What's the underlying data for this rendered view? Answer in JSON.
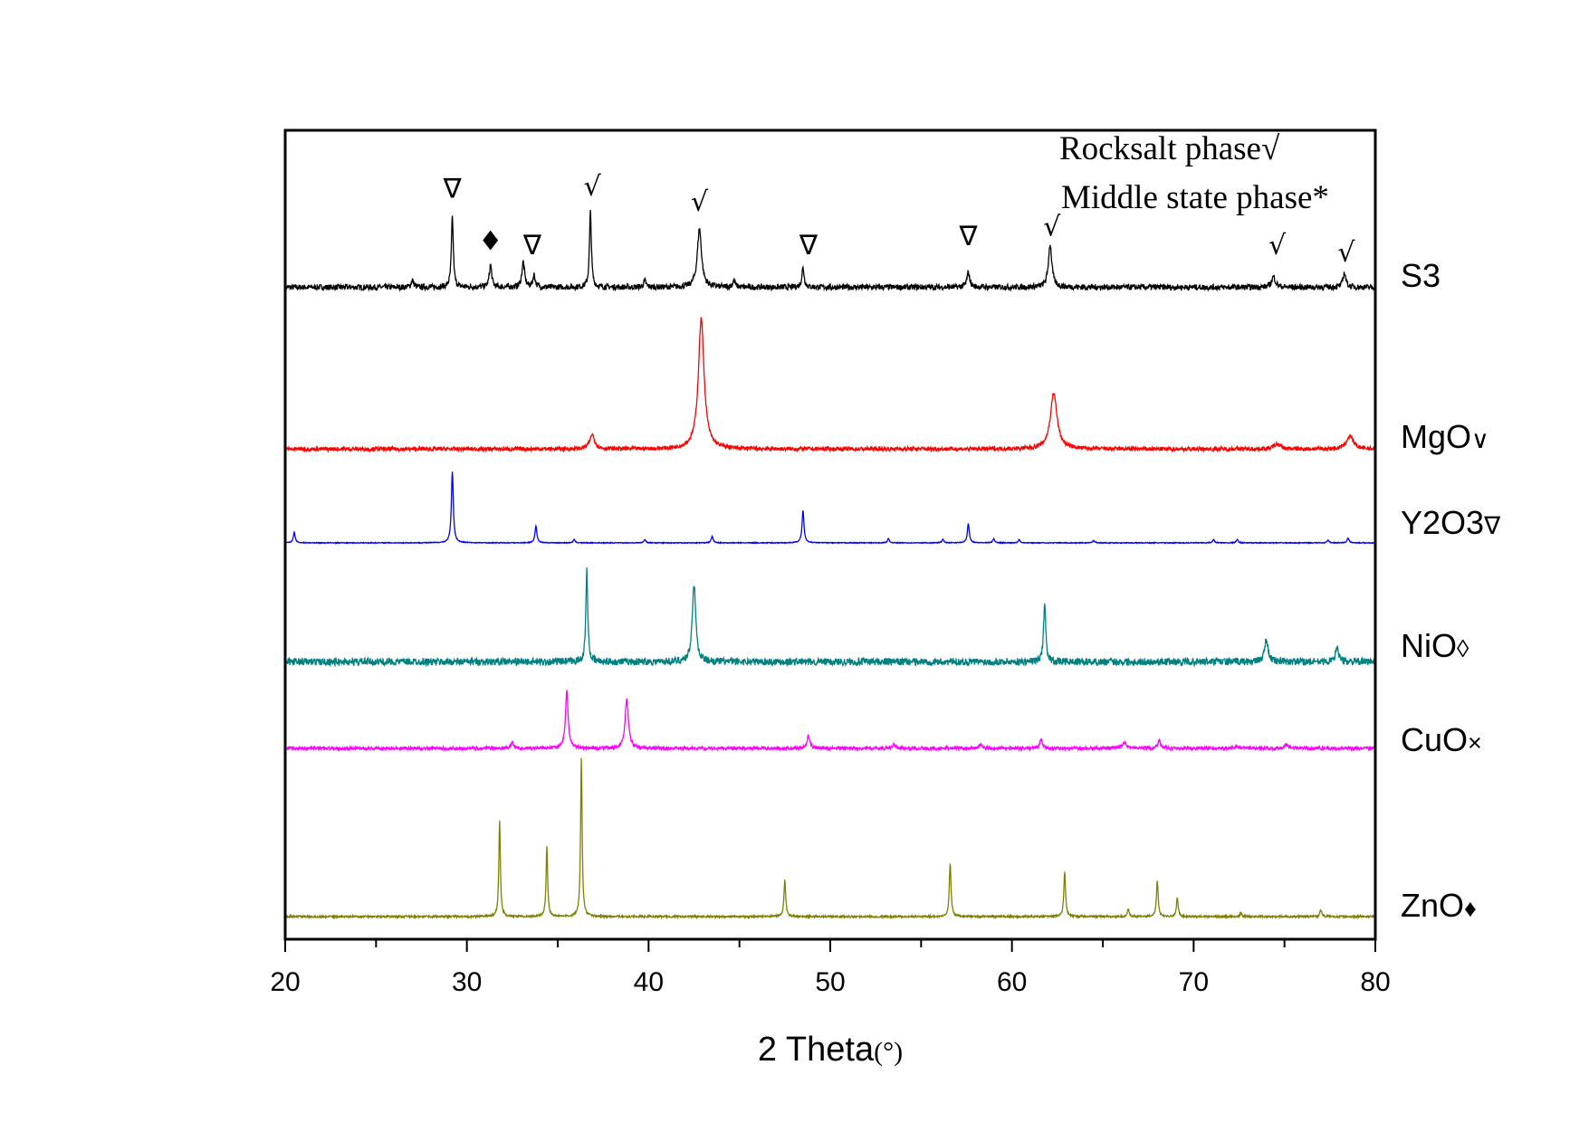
{
  "chart_data": {
    "type": "line",
    "xlabel": "2 Theta",
    "xlabel_unit": "(°)",
    "ylabel": "",
    "xlim": [
      20,
      80
    ],
    "ylim": [
      0,
      100
    ],
    "xticks": [
      20,
      30,
      40,
      50,
      60,
      70,
      80
    ],
    "minor_xticks": [
      25,
      35,
      45,
      55,
      65,
      75
    ],
    "grid": false,
    "legend": {
      "placement": "top-right",
      "entries": [
        {
          "text": "Rocksalt phase√"
        },
        {
          "text": "Middle state phase*"
        }
      ]
    },
    "series": [
      {
        "name": "S3",
        "label_main": "S3",
        "label_mark": "",
        "color": "#000000",
        "offset": 80.6,
        "peaks": [
          [
            27.0,
            0.9,
            0.12
          ],
          [
            29.2,
            8.7,
            0.1
          ],
          [
            31.3,
            2.8,
            0.12
          ],
          [
            33.1,
            3.1,
            0.14
          ],
          [
            33.7,
            1.5,
            0.12
          ],
          [
            36.8,
            9.3,
            0.1
          ],
          [
            39.8,
            0.8,
            0.12
          ],
          [
            42.8,
            7.2,
            0.22
          ],
          [
            44.7,
            0.9,
            0.12
          ],
          [
            48.5,
            2.4,
            0.12
          ],
          [
            57.6,
            1.8,
            0.15
          ],
          [
            62.1,
            5.3,
            0.18
          ],
          [
            74.4,
            1.3,
            0.2
          ],
          [
            78.3,
            1.8,
            0.15
          ]
        ]
      },
      {
        "name": "MgO∨",
        "label_main": "MgO",
        "label_mark": "∨",
        "color": "#ff0000",
        "offset": 60.6,
        "peaks": [
          [
            36.9,
            1.8,
            0.25
          ],
          [
            42.9,
            16.1,
            0.3
          ],
          [
            62.3,
            6.9,
            0.35
          ],
          [
            74.6,
            0.6,
            0.35
          ],
          [
            78.6,
            1.6,
            0.35
          ]
        ]
      },
      {
        "name": "Y2O3∇",
        "label_main": "Y2O3",
        "label_mark": "∇",
        "color": "#0000ff",
        "offset": 49.0,
        "peaks": [
          [
            20.5,
            1.3,
            0.1
          ],
          [
            29.2,
            8.8,
            0.1
          ],
          [
            33.8,
            2.1,
            0.1
          ],
          [
            35.9,
            0.4,
            0.1
          ],
          [
            39.8,
            0.4,
            0.1
          ],
          [
            43.5,
            0.8,
            0.1
          ],
          [
            48.5,
            4.0,
            0.1
          ],
          [
            53.2,
            0.5,
            0.1
          ],
          [
            56.2,
            0.4,
            0.1
          ],
          [
            57.6,
            2.4,
            0.1
          ],
          [
            59.0,
            0.5,
            0.1
          ],
          [
            60.4,
            0.4,
            0.1
          ],
          [
            64.5,
            0.3,
            0.1
          ],
          [
            71.1,
            0.4,
            0.1
          ],
          [
            72.4,
            0.4,
            0.1
          ],
          [
            77.4,
            0.3,
            0.1
          ],
          [
            78.5,
            0.6,
            0.1
          ]
        ]
      },
      {
        "name": "NiO◊",
        "label_main": "NiO",
        "label_mark": "◊",
        "color": "#008080",
        "offset": 34.3,
        "peaks": [
          [
            36.6,
            11.3,
            0.1
          ],
          [
            42.5,
            9.7,
            0.18
          ],
          [
            61.8,
            7.1,
            0.12
          ],
          [
            74.0,
            2.8,
            0.18
          ],
          [
            77.9,
            1.9,
            0.15
          ]
        ]
      },
      {
        "name": "CuO×",
        "label_main": "CuO",
        "label_mark": "×",
        "color": "#ff00ff",
        "offset": 23.6,
        "peaks": [
          [
            32.5,
            0.8,
            0.12
          ],
          [
            35.5,
            7.1,
            0.14
          ],
          [
            38.8,
            6.0,
            0.17
          ],
          [
            48.8,
            1.5,
            0.15
          ],
          [
            53.5,
            0.5,
            0.15
          ],
          [
            58.3,
            0.5,
            0.15
          ],
          [
            61.6,
            1.0,
            0.15
          ],
          [
            66.2,
            0.8,
            0.2
          ],
          [
            68.1,
            1.0,
            0.15
          ],
          [
            72.4,
            0.3,
            0.15
          ],
          [
            75.1,
            0.5,
            0.2
          ]
        ]
      },
      {
        "name": "ZnO♦",
        "label_main": "ZnO",
        "label_mark": "♦",
        "color": "#808000",
        "offset": 2.8,
        "peaks": [
          [
            31.8,
            11.8,
            0.08
          ],
          [
            34.4,
            8.8,
            0.08
          ],
          [
            36.3,
            19.5,
            0.08
          ],
          [
            47.5,
            4.5,
            0.09
          ],
          [
            56.6,
            6.6,
            0.09
          ],
          [
            62.9,
            5.5,
            0.09
          ],
          [
            66.4,
            0.9,
            0.09
          ],
          [
            68.0,
            4.5,
            0.09
          ],
          [
            69.1,
            2.3,
            0.09
          ],
          [
            72.6,
            0.4,
            0.1
          ],
          [
            77.0,
            0.8,
            0.1
          ]
        ]
      }
    ],
    "annotations": [
      {
        "x": 29.2,
        "y": 92.9,
        "symbol": "∇"
      },
      {
        "x": 31.3,
        "y": 86.4,
        "symbol": "♦"
      },
      {
        "x": 33.6,
        "y": 85.9,
        "symbol": "∇"
      },
      {
        "x": 36.9,
        "y": 93.2,
        "symbol": "√"
      },
      {
        "x": 42.8,
        "y": 91.3,
        "symbol": "√"
      },
      {
        "x": 48.8,
        "y": 85.9,
        "symbol": "∇"
      },
      {
        "x": 57.6,
        "y": 87.0,
        "symbol": "∇"
      },
      {
        "x": 62.2,
        "y": 88.2,
        "symbol": "√"
      },
      {
        "x": 74.6,
        "y": 85.9,
        "symbol": "√"
      },
      {
        "x": 78.4,
        "y": 85.0,
        "symbol": "√"
      }
    ]
  }
}
